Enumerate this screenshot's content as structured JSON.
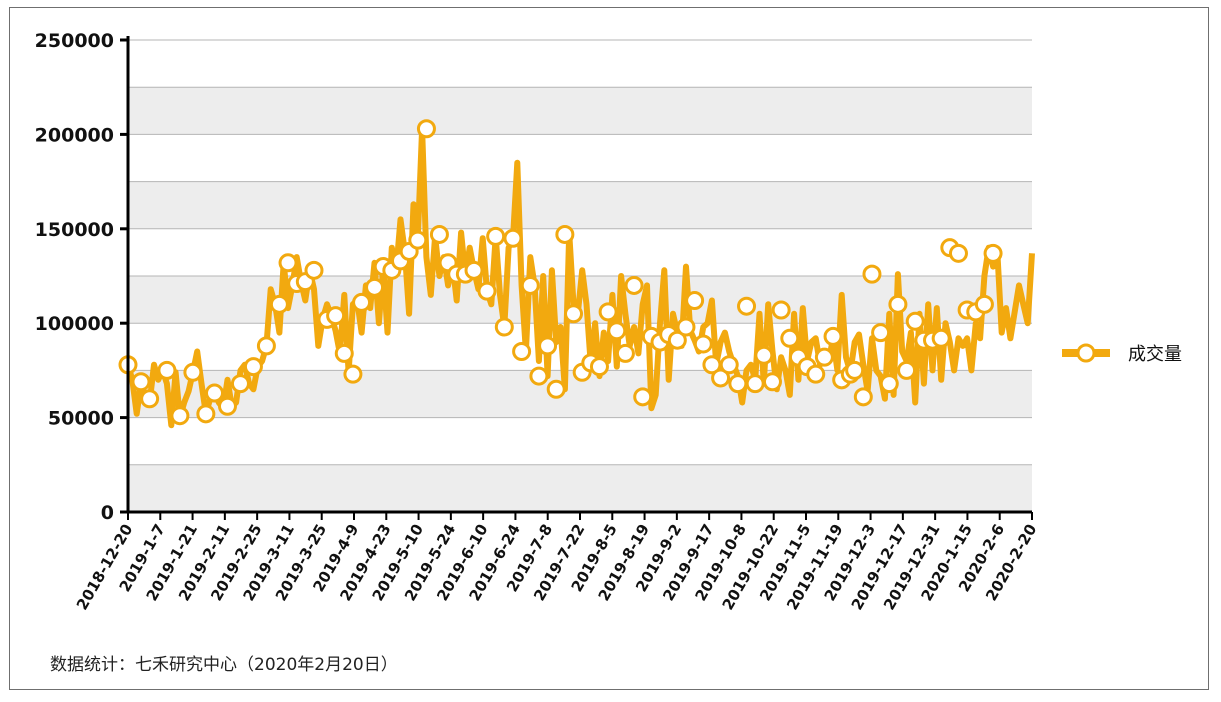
{
  "chart_data": {
    "type": "line",
    "title": "",
    "xlabel": "",
    "ylabel": "",
    "ylim": [
      0,
      250000
    ],
    "yticks": [
      0,
      50000,
      100000,
      150000,
      200000,
      250000
    ],
    "ytick_labels": [
      "0",
      "50000",
      "100000",
      "150000",
      "200000",
      "250000"
    ],
    "xtick_labels": [
      "2018-12-20",
      "2019-1-7",
      "2019-1-21",
      "2019-2-11",
      "2019-2-25",
      "2019-3-11",
      "2019-3-25",
      "2019-4-9",
      "2019-4-23",
      "2019-5-10",
      "2019-5-24",
      "2019-6-10",
      "2019-6-24",
      "2019-7-8",
      "2019-7-22",
      "2019-8-5",
      "2019-8-19",
      "2019-9-2",
      "2019-9-17",
      "2019-10-8",
      "2019-10-22",
      "2019-11-5",
      "2019-11-19",
      "2019-12-3",
      "2019-12-17",
      "2019-12-31",
      "2020-1-15",
      "2020-2-6",
      "2020-2-20"
    ],
    "grid": true,
    "legend_position": "right",
    "colors": {
      "series": "#F2A90F",
      "marker_fill": "#FFFFFF",
      "band": "#EDEDED",
      "grid": "#B5B5B5",
      "axis": "#000000"
    },
    "series": [
      {
        "name": "成交量",
        "values": [
          78000,
          70000,
          52000,
          68000,
          61000,
          58000,
          78000,
          70000,
          75000,
          68000,
          46000,
          74000,
          50000,
          58000,
          64000,
          74000,
          85000,
          68000,
          52000,
          60000,
          63000,
          58000,
          55000,
          70000,
          56000,
          58000,
          75000,
          78000,
          68000,
          65000,
          77000,
          80000,
          88000,
          118000,
          110000,
          95000,
          132000,
          108000,
          120000,
          135000,
          122000,
          112000,
          128000,
          118000,
          88000,
          102000,
          110000,
          104000,
          96000,
          84000,
          115000,
          74000,
          110000,
          112000,
          95000,
          120000,
          108000,
          132000,
          100000,
          130000,
          95000,
          140000,
          128000,
          155000,
          138000,
          105000,
          163000,
          145000,
          203000,
          135000,
          115000,
          146000,
          125000,
          135000,
          120000,
          132000,
          112000,
          148000,
          125000,
          140000,
          128000,
          118000,
          145000,
          117000,
          110000,
          146000,
          115000,
          98000,
          140000,
          145000,
          185000,
          120000,
          85000,
          135000,
          120000,
          80000,
          125000,
          72000,
          128000,
          90000,
          98000,
          65000,
          148000,
          110000,
          105000,
          128000,
          110000,
          78000,
          100000,
          72000,
          95000,
          80000,
          115000,
          77000,
          125000,
          105000,
          88000,
          98000,
          84000,
          110000,
          120000,
          55000,
          62000,
          100000,
          128000,
          70000,
          105000,
          95000,
          88000,
          130000,
          96000,
          91000,
          85000,
          98000,
          100000,
          112000,
          78000,
          90000,
          95000,
          85000,
          78000,
          72000,
          58000,
          75000,
          78000,
          70000,
          105000,
          68000,
          110000,
          85000,
          65000,
          82000,
          75000,
          62000,
          105000,
          70000,
          108000,
          80000,
          90000,
          92000,
          78000,
          85000,
          80000,
          92000,
          75000,
          115000,
          82000,
          74000,
          90000,
          94000,
          78000,
          64000,
          92000,
          75000,
          72000,
          60000,
          105000,
          62000,
          126000,
          85000,
          80000,
          95000,
          58000,
          105000,
          68000,
          110000,
          75000,
          108000,
          70000,
          100000,
          90000,
          75000,
          92000,
          88000,
          92000,
          75000,
          100000,
          92000,
          125000,
          140000,
          130000,
          137000,
          95000,
          108000,
          92000,
          106000,
          120000,
          110000,
          100000,
          137000
        ],
        "markers": [
          {
            "i": 0,
            "v": 78000
          },
          {
            "i": 3,
            "v": 69000
          },
          {
            "i": 5,
            "v": 60000
          },
          {
            "i": 9,
            "v": 75000
          },
          {
            "i": 12,
            "v": 51000
          },
          {
            "i": 15,
            "v": 74000
          },
          {
            "i": 18,
            "v": 52000
          },
          {
            "i": 20,
            "v": 63000
          },
          {
            "i": 23,
            "v": 56000
          },
          {
            "i": 26,
            "v": 68000
          },
          {
            "i": 29,
            "v": 77000
          },
          {
            "i": 32,
            "v": 88000
          },
          {
            "i": 35,
            "v": 110000
          },
          {
            "i": 37,
            "v": 132000
          },
          {
            "i": 39,
            "v": 121000
          },
          {
            "i": 41,
            "v": 122000
          },
          {
            "i": 43,
            "v": 128000
          },
          {
            "i": 46,
            "v": 102000
          },
          {
            "i": 48,
            "v": 104000
          },
          {
            "i": 50,
            "v": 84000
          },
          {
            "i": 52,
            "v": 73000
          },
          {
            "i": 54,
            "v": 111000
          },
          {
            "i": 57,
            "v": 119000
          },
          {
            "i": 59,
            "v": 130000
          },
          {
            "i": 61,
            "v": 128000
          },
          {
            "i": 63,
            "v": 133000
          },
          {
            "i": 65,
            "v": 138000
          },
          {
            "i": 67,
            "v": 144000
          },
          {
            "i": 69,
            "v": 203000
          },
          {
            "i": 72,
            "v": 147000
          },
          {
            "i": 74,
            "v": 132000
          },
          {
            "i": 76,
            "v": 126000
          },
          {
            "i": 78,
            "v": 126000
          },
          {
            "i": 80,
            "v": 128000
          },
          {
            "i": 83,
            "v": 117000
          },
          {
            "i": 85,
            "v": 146000
          },
          {
            "i": 87,
            "v": 98000
          },
          {
            "i": 89,
            "v": 145000
          },
          {
            "i": 91,
            "v": 85000
          },
          {
            "i": 93,
            "v": 120000
          },
          {
            "i": 95,
            "v": 72000
          },
          {
            "i": 97,
            "v": 88000
          },
          {
            "i": 99,
            "v": 65000
          },
          {
            "i": 101,
            "v": 147000
          },
          {
            "i": 103,
            "v": 105000
          },
          {
            "i": 105,
            "v": 74000
          },
          {
            "i": 107,
            "v": 79000
          },
          {
            "i": 109,
            "v": 77000
          },
          {
            "i": 111,
            "v": 106000
          },
          {
            "i": 113,
            "v": 96000
          },
          {
            "i": 115,
            "v": 84000
          },
          {
            "i": 117,
            "v": 120000
          },
          {
            "i": 119,
            "v": 61000
          },
          {
            "i": 121,
            "v": 93000
          },
          {
            "i": 123,
            "v": 90000
          },
          {
            "i": 125,
            "v": 94000
          },
          {
            "i": 127,
            "v": 91000
          },
          {
            "i": 129,
            "v": 98000
          },
          {
            "i": 131,
            "v": 112000
          },
          {
            "i": 133,
            "v": 89000
          },
          {
            "i": 135,
            "v": 78000
          },
          {
            "i": 137,
            "v": 71000
          },
          {
            "i": 139,
            "v": 78000
          },
          {
            "i": 141,
            "v": 68000
          },
          {
            "i": 143,
            "v": 109000
          },
          {
            "i": 145,
            "v": 68000
          },
          {
            "i": 147,
            "v": 83000
          },
          {
            "i": 149,
            "v": 69000
          },
          {
            "i": 151,
            "v": 107000
          },
          {
            "i": 153,
            "v": 92000
          },
          {
            "i": 155,
            "v": 82000
          },
          {
            "i": 157,
            "v": 77000
          },
          {
            "i": 159,
            "v": 73000
          },
          {
            "i": 161,
            "v": 82000
          },
          {
            "i": 163,
            "v": 93000
          },
          {
            "i": 165,
            "v": 70000
          },
          {
            "i": 167,
            "v": 73000
          },
          {
            "i": 168,
            "v": 75000
          },
          {
            "i": 170,
            "v": 61000
          },
          {
            "i": 172,
            "v": 126000
          },
          {
            "i": 174,
            "v": 95000
          },
          {
            "i": 176,
            "v": 68000
          },
          {
            "i": 178,
            "v": 110000
          },
          {
            "i": 180,
            "v": 75000
          },
          {
            "i": 182,
            "v": 101000
          },
          {
            "i": 184,
            "v": 91000
          },
          {
            "i": 186,
            "v": 91000
          },
          {
            "i": 188,
            "v": 92000
          },
          {
            "i": 190,
            "v": 140000
          },
          {
            "i": 192,
            "v": 137000
          },
          {
            "i": 194,
            "v": 107000
          },
          {
            "i": 196,
            "v": 106000
          },
          {
            "i": 198,
            "v": 110000
          },
          {
            "i": 200,
            "v": 137000
          }
        ]
      }
    ]
  },
  "source_note": "数据统计：七禾研究中心（2020年2月20日）"
}
